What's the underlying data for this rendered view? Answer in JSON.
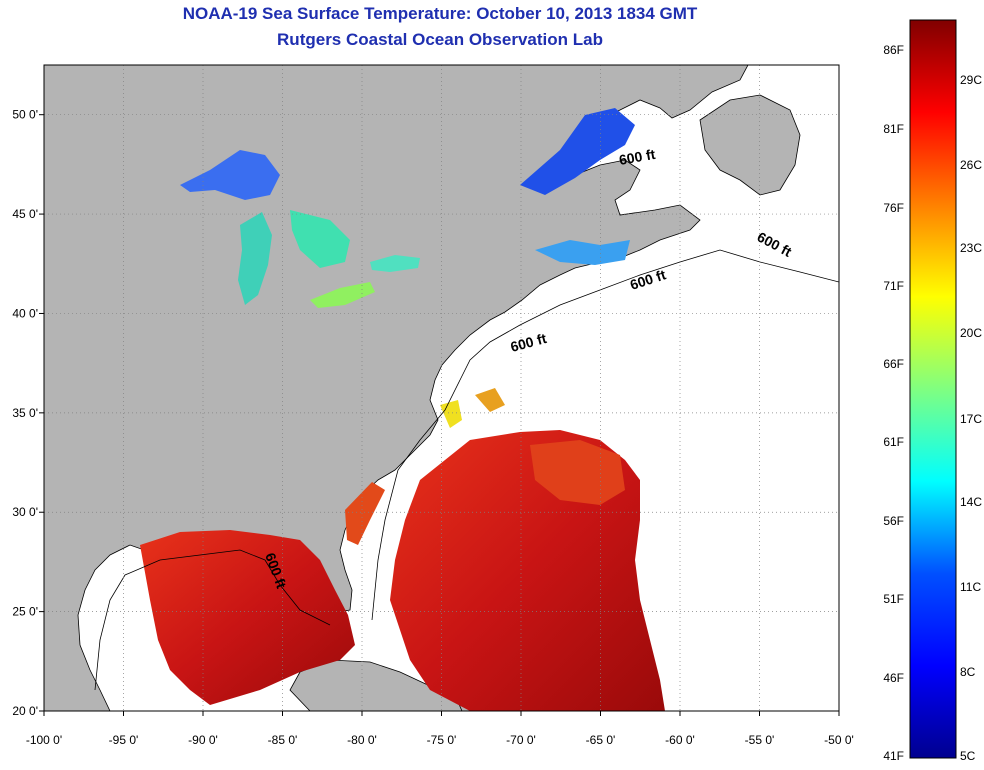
{
  "title": {
    "line1": "NOAA-19 Sea Surface Temperature:  October 10, 2013 1834 GMT",
    "line2": "Rutgers Coastal Ocean Observation Lab"
  },
  "map": {
    "lon_range": [
      -100,
      -50
    ],
    "lat_range": [
      20,
      52.5
    ],
    "lon_ticks": [
      {
        "lon": -100,
        "label": "-100 0'"
      },
      {
        "lon": -95,
        "label": "-95 0'"
      },
      {
        "lon": -90,
        "label": "-90 0'"
      },
      {
        "lon": -85,
        "label": "-85 0'"
      },
      {
        "lon": -80,
        "label": "-80 0'"
      },
      {
        "lon": -75,
        "label": "-75 0'"
      },
      {
        "lon": -70,
        "label": "-70 0'"
      },
      {
        "lon": -65,
        "label": "-65 0'"
      },
      {
        "lon": -60,
        "label": "-60 0'"
      },
      {
        "lon": -55,
        "label": "-55 0'"
      },
      {
        "lon": -50,
        "label": "-50 0'"
      }
    ],
    "lat_ticks": [
      {
        "lat": 50,
        "label": "50 0'"
      },
      {
        "lat": 45,
        "label": "45 0'"
      },
      {
        "lat": 40,
        "label": "40 0'"
      },
      {
        "lat": 35,
        "label": "35 0'"
      },
      {
        "lat": 30,
        "label": "30 0'"
      },
      {
        "lat": 25,
        "label": "25 0'"
      },
      {
        "lat": 20,
        "label": "20 0'"
      }
    ],
    "contour_labels": [
      "600 ft",
      "600 ft",
      "600 ft",
      "600 ft",
      "600 ft"
    ],
    "land_color": "#b4b4b4",
    "ocean_color": "#ffffff",
    "grid": true
  },
  "colorbar": {
    "fahrenheit_labels": [
      "86F",
      "81F",
      "76F",
      "71F",
      "66F",
      "61F",
      "56F",
      "51F",
      "46F",
      "41F"
    ],
    "celsius_labels": [
      "29C",
      "26C",
      "23C",
      "20C",
      "17C",
      "14C",
      "11C",
      "8C",
      "5C"
    ],
    "colors": [
      "#00008f",
      "#0000ff",
      "#0080ff",
      "#00ffff",
      "#80ff80",
      "#ffff00",
      "#ff8000",
      "#ff0000",
      "#800000"
    ]
  }
}
